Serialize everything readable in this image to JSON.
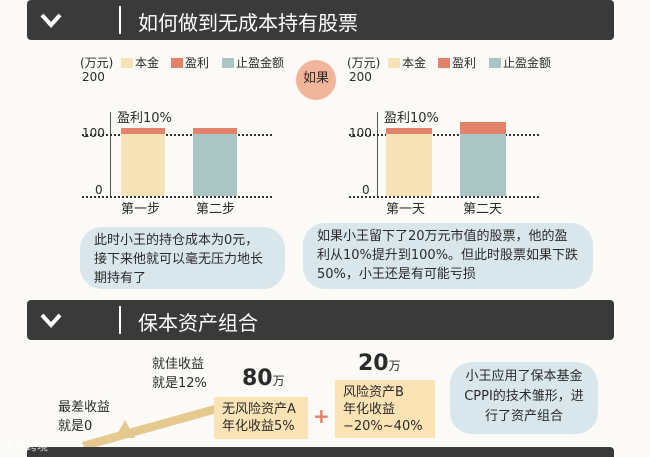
{
  "section1": {
    "title": "如何做到无成本持有股票"
  },
  "section2": {
    "title": "保本资产组合"
  },
  "left_chart": {
    "unit": "(万元)",
    "legend": [
      "本金",
      "盈利",
      "止盈金额"
    ],
    "ticks": [
      "200",
      "100",
      "0"
    ],
    "annotation": "盈利10%",
    "x_labels": [
      "第一步",
      "第二步"
    ]
  },
  "right_chart": {
    "unit": "(万元)",
    "legend": [
      "本金",
      "盈利",
      "止盈金额"
    ],
    "ticks": [
      "200",
      "100",
      "0"
    ],
    "annotation": "盈利10%",
    "x_labels": [
      "第一天",
      "第二天"
    ]
  },
  "if_label": "如果",
  "bubble_left": "此时小王的持仓成本为0元，接下来他就可以毫无压力地长期持有了",
  "bubble_right": "如果小王留下了20万元市值的股票，他的盈利从10%提升到100%。但此时股票如果下跌50%，小王还是有可能亏损",
  "portfolio": {
    "best": "就佳收益",
    "best_rate": "就是12%",
    "worst": "最差收益",
    "worst_rate": "就是0",
    "a_amount": "80",
    "a_unit": "万",
    "a_name": "无风险资产A",
    "a_yield": "年化收益5%",
    "plus": "+",
    "b_amount": "20",
    "b_unit": "万",
    "b_name": "风险资产B",
    "b_yield_label": "年化收益",
    "b_yield": "−20%~40%",
    "note": "小王应用了保本基金CPPI的技术雏形，进行了资产组合"
  },
  "watermark": "大数跨境",
  "colors": {
    "principal": "#f6e3b8",
    "profit": "#e2826b",
    "takeprofit": "#a9c6c4",
    "header": "#3a3a3a",
    "bubble": "#d9e6ec"
  },
  "chart_data": [
    {
      "type": "bar",
      "title": "",
      "ylabel": "(万元)",
      "ylim": [
        0,
        200
      ],
      "categories": [
        "第一步",
        "第二步"
      ],
      "series": [
        {
          "name": "本金",
          "values": [
            100,
            0
          ]
        },
        {
          "name": "盈利",
          "values": [
            10,
            10
          ]
        },
        {
          "name": "止盈金额",
          "values": [
            0,
            100
          ]
        }
      ]
    },
    {
      "type": "bar",
      "title": "",
      "ylabel": "(万元)",
      "ylim": [
        0,
        200
      ],
      "categories": [
        "第一天",
        "第二天"
      ],
      "series": [
        {
          "name": "本金",
          "values": [
            100,
            0
          ]
        },
        {
          "name": "盈利",
          "values": [
            10,
            20
          ]
        },
        {
          "name": "止盈金额",
          "values": [
            0,
            100
          ]
        }
      ]
    }
  ]
}
